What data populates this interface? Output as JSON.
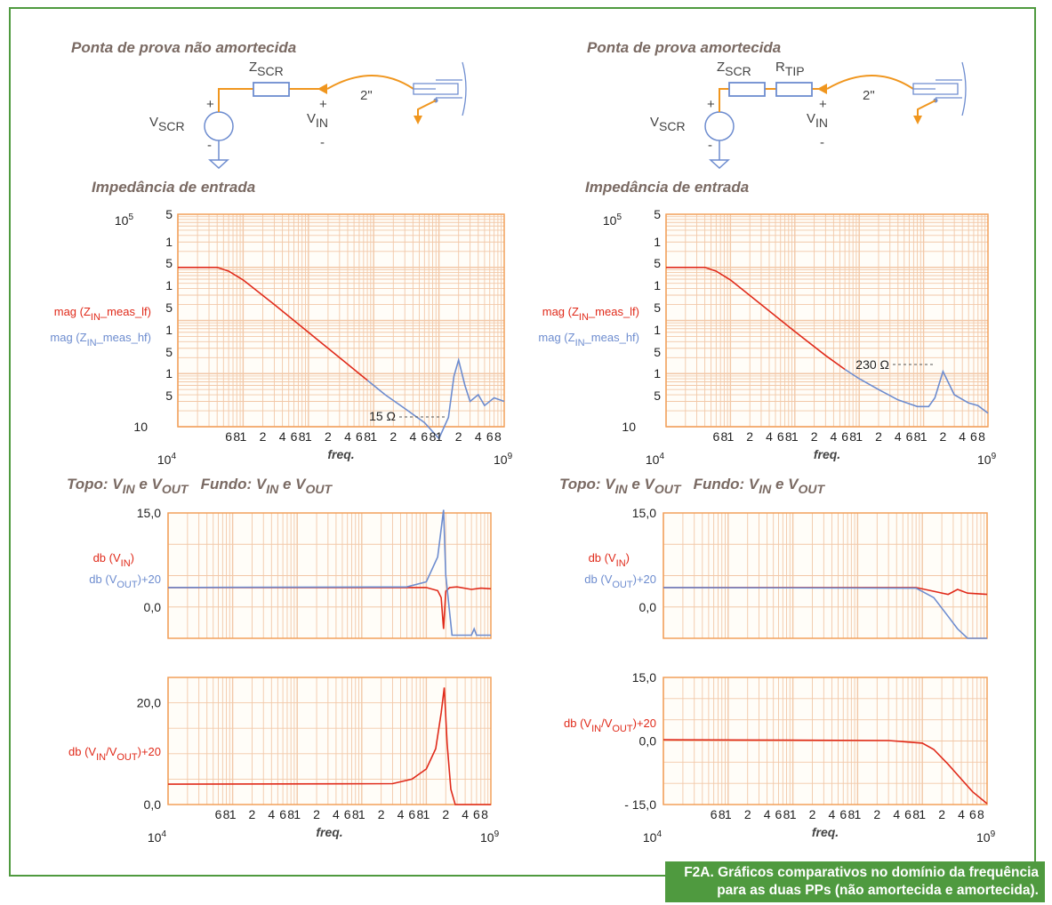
{
  "caption": {
    "line1": "F2A. Gráficos comparativos no domínio da frequência",
    "line2": "para as duas PPs (não amortecida e amortecida)."
  },
  "colors": {
    "red": "#e02a1a",
    "blue": "#6d8ccf",
    "grid": "#f2c8a8",
    "frame": "#f2a05a",
    "border": "#4f9a3f"
  },
  "left": {
    "circuit": {
      "title": "Ponta de prova não amortecida",
      "z_label": "Z",
      "z_sub": "SCR",
      "v_label": "V",
      "v_sub": "SCR",
      "vin_label": "V",
      "vin_sub": "IN",
      "plus": "+",
      "minus": "-",
      "cable": "2\""
    },
    "imp_title": "Impedância de entrada",
    "mid_title": "Topo: V_IN e V_OUT   Fundo: V_IN e V_OUT",
    "mid_title_parts": [
      "Topo: V",
      "IN",
      " e V",
      "OUT",
      "   Fundo: V",
      "IN",
      " e V",
      "OUT"
    ]
  },
  "right": {
    "circuit": {
      "title": "Ponta de prova amortecida",
      "z_label": "Z",
      "z_sub": "SCR",
      "r_label": "R",
      "r_sub": "TIP",
      "v_label": "V",
      "v_sub": "SCR",
      "vin_label": "V",
      "vin_sub": "IN",
      "plus": "+",
      "minus": "-",
      "cable": "2\""
    },
    "imp_title": "Impedância de entrada",
    "mid_title_parts": [
      "Topo: V",
      "IN",
      " e V",
      "OUT",
      "   Fundo: V",
      "IN",
      " e V",
      "OUT"
    ]
  },
  "x_axis": {
    "label": "freq.",
    "tick_labels": [
      "6",
      "8",
      "1",
      "2",
      "4",
      "6",
      "8",
      "1",
      "2",
      "4",
      "6",
      "8",
      "1",
      "2",
      "4",
      "6",
      "8",
      "1",
      "2",
      "4",
      "6",
      "8",
      "1",
      "2",
      "4",
      "6"
    ],
    "start_label": "10",
    "start_exp": "4",
    "end_label": "10",
    "end_exp": "9"
  },
  "chart_data": [
    {
      "id": "imp-left",
      "type": "line",
      "scale": "log-log",
      "title": "Impedância de entrada",
      "xlim": [
        10000,
        1000000000
      ],
      "ylim_label": [
        "10",
        "100000"
      ],
      "y_tick_labels": [
        "5",
        "1",
        "5",
        "1",
        "5",
        "1",
        "5",
        "1",
        "5"
      ],
      "y_top_label": "10",
      "y_top_exp": "5",
      "y_bottom_label": "10",
      "series": [
        {
          "name": "mag (Z_IN_meas_lf)",
          "label_parts": [
            "mag (Z",
            "IN",
            "_meas_lf)"
          ],
          "color": "#e02a1a",
          "x": [
            10000,
            40000,
            60000,
            100000,
            300000,
            1000000,
            3000000,
            8000000
          ],
          "y": [
            10000,
            10000,
            8500,
            5800,
            2000,
            600,
            200,
            75
          ]
        },
        {
          "name": "mag (Z_IN_meas_hf)",
          "label_parts": [
            "mag (Z",
            "IN",
            "_meas_hf)"
          ],
          "color": "#6d8ccf",
          "x": [
            8000000,
            15000000,
            30000000,
            60000000,
            100000000,
            140000000,
            170000000,
            200000000,
            250000000,
            300000000,
            400000000,
            500000000,
            700000000,
            1000000000
          ],
          "y": [
            75,
            40,
            22,
            12,
            6,
            15,
            90,
            180,
            60,
            30,
            40,
            25,
            35,
            30
          ]
        }
      ],
      "annotation": "15 Ω"
    },
    {
      "id": "imp-right",
      "type": "line",
      "scale": "log-log",
      "title": "Impedância de entrada",
      "xlim": [
        10000,
        1000000000
      ],
      "y_tick_labels": [
        "5",
        "1",
        "5",
        "1",
        "5",
        "1",
        "5",
        "1",
        "5"
      ],
      "y_top_label": "10",
      "y_top_exp": "5",
      "y_bottom_label": "10",
      "series": [
        {
          "name": "mag (Z_IN_meas_lf)",
          "label_parts": [
            "mag (Z",
            "IN",
            "_meas_lf)"
          ],
          "color": "#e02a1a",
          "x": [
            10000,
            40000,
            60000,
            100000,
            300000,
            1000000,
            3000000,
            6000000
          ],
          "y": [
            10000,
            10000,
            8500,
            5800,
            2000,
            620,
            220,
            120
          ]
        },
        {
          "name": "mag (Z_IN_meas_hf)",
          "label_parts": [
            "mag (Z",
            "IN",
            "_meas_hf)"
          ],
          "color": "#6d8ccf",
          "x": [
            6000000,
            10000000,
            20000000,
            40000000,
            80000000,
            120000000,
            150000000,
            200000000,
            300000000,
            500000000,
            700000000,
            1000000000
          ],
          "y": [
            120,
            80,
            50,
            32,
            24,
            24,
            35,
            110,
            40,
            28,
            25,
            18
          ]
        }
      ],
      "annotation": "230 Ω"
    },
    {
      "id": "db-left-top",
      "type": "line",
      "xscale": "log",
      "xlim": [
        10000,
        1000000000
      ],
      "ylim": [
        -5,
        15
      ],
      "y_tick_labels": [
        "15,0",
        "0,0"
      ],
      "series": [
        {
          "name": "db (V_IN)",
          "label_parts": [
            "db (V",
            "IN",
            ")"
          ],
          "color": "#e02a1a",
          "x": [
            10000,
            100000000,
            150000000,
            170000000,
            185000000,
            200000000,
            230000000,
            300000000,
            500000000,
            700000000,
            1000000000
          ],
          "y": [
            3.1,
            3.1,
            2.6,
            1.5,
            -3.5,
            2.5,
            3.1,
            3.2,
            2.8,
            3.0,
            2.9
          ]
        },
        {
          "name": "db (V_OUT)+20",
          "label_parts": [
            "db (V",
            "OUT",
            ")+20"
          ],
          "color": "#6d8ccf",
          "x": [
            10000,
            50000000,
            100000000,
            150000000,
            185000000,
            200000000,
            250000000,
            300000000,
            500000000,
            550000000,
            600000000,
            1000000000
          ],
          "y": [
            3.1,
            3.2,
            4.0,
            8.0,
            15.5,
            5.0,
            -4.5,
            -4.5,
            -4.5,
            -3.5,
            -4.5,
            -4.5
          ]
        }
      ]
    },
    {
      "id": "db-right-top",
      "type": "line",
      "xscale": "log",
      "xlim": [
        10000,
        1000000000
      ],
      "ylim": [
        -5,
        15
      ],
      "y_tick_labels": [
        "15,0",
        "0,0"
      ],
      "series": [
        {
          "name": "db (V_IN)",
          "label_parts": [
            "db (V",
            "IN",
            ")"
          ],
          "color": "#e02a1a",
          "x": [
            10000,
            80000000,
            150000000,
            250000000,
            350000000,
            500000000,
            1000000000
          ],
          "y": [
            3.1,
            3.1,
            2.5,
            2.0,
            2.8,
            2.2,
            2.0
          ]
        },
        {
          "name": "db (V_OUT)+20",
          "label_parts": [
            "db (V",
            "OUT",
            ")+20"
          ],
          "color": "#6d8ccf",
          "x": [
            10000,
            80000000,
            150000000,
            250000000,
            350000000,
            500000000,
            1000000000
          ],
          "y": [
            3.1,
            3.0,
            1.5,
            -1.5,
            -3.5,
            -5,
            -5
          ]
        }
      ]
    },
    {
      "id": "db-left-bottom",
      "type": "line",
      "xscale": "log",
      "xlim": [
        10000,
        1000000000
      ],
      "ylim": [
        0,
        25
      ],
      "y_tick_labels": [
        "20,0",
        "0,0"
      ],
      "series": [
        {
          "name": "db (V_IN/V_OUT)+20",
          "label_parts": [
            "db (V",
            "IN",
            "/V",
            "OUT",
            ")+20"
          ],
          "color": "#e02a1a",
          "x": [
            10000,
            30000000,
            60000000,
            100000000,
            140000000,
            170000000,
            190000000,
            210000000,
            240000000,
            280000000,
            1000000000
          ],
          "y": [
            4.0,
            4.1,
            5.0,
            7.0,
            11.0,
            18.0,
            23.0,
            12.0,
            3.0,
            0,
            0
          ]
        }
      ]
    },
    {
      "id": "db-right-bottom",
      "type": "line",
      "xscale": "log",
      "xlim": [
        10000,
        1000000000
      ],
      "ylim": [
        -15,
        15
      ],
      "y_tick_labels": [
        "15,0",
        "0,0",
        "- 15,0"
      ],
      "series": [
        {
          "name": "db (V_IN/V_OUT)+20",
          "label_parts": [
            "db (V",
            "IN",
            "/V",
            "OUT",
            ")+20"
          ],
          "color": "#e02a1a",
          "x": [
            10000,
            30000000,
            100000000,
            150000000,
            250000000,
            400000000,
            600000000,
            1000000000
          ],
          "y": [
            0.3,
            0.1,
            -0.5,
            -2.0,
            -5.5,
            -9.0,
            -12.0,
            -14.8
          ]
        }
      ]
    }
  ]
}
